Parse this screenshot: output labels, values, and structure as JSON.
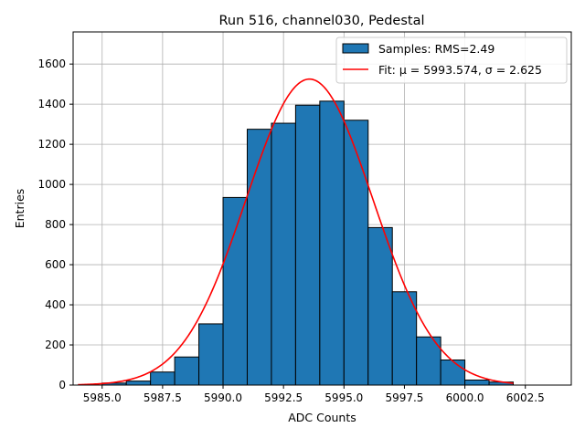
{
  "chart_data": {
    "type": "bar",
    "title": "Run 516, channel030, Pedestal",
    "xlabel": "ADC Counts",
    "ylabel": "Entries",
    "xlim": [
      5983.8,
      6004.4
    ],
    "ylim": [
      0,
      1760
    ],
    "xticks": [
      5985.0,
      5987.5,
      5990.0,
      5992.5,
      5995.0,
      5997.5,
      6000.0,
      6002.5
    ],
    "xtick_labels": [
      "5985.0",
      "5987.5",
      "5990.0",
      "5992.5",
      "5995.0",
      "5997.5",
      "6000.0",
      "6002.5"
    ],
    "yticks": [
      0,
      200,
      400,
      600,
      800,
      1000,
      1200,
      1400,
      1600
    ],
    "ytick_labels": [
      "0",
      "200",
      "400",
      "600",
      "800",
      "1000",
      "1200",
      "1400",
      "1600"
    ],
    "grid": true,
    "legend_position": "top-right",
    "bar_color": "#1f77b4",
    "bar_edge_color": "#000000",
    "fit_color": "#ff0000",
    "bin_edges": [
      5985,
      5986,
      5987,
      5988,
      5989,
      5990,
      5991,
      5992,
      5993,
      5994,
      5995,
      5996,
      5997,
      5998,
      5999,
      6000,
      6001,
      6002
    ],
    "values": [
      10,
      20,
      65,
      140,
      305,
      935,
      1275,
      1305,
      1395,
      1415,
      1320,
      785,
      465,
      240,
      125,
      25,
      15
    ],
    "series": [
      {
        "name": "Samples: RMS=2.49",
        "kind": "histogram"
      },
      {
        "name": "Fit: μ = 5993.574, σ = 2.625",
        "kind": "gaussian-fit",
        "mu": 5993.574,
        "sigma": 2.625,
        "amplitude": 1525,
        "x_range": [
          5984,
          6002
        ]
      }
    ]
  }
}
